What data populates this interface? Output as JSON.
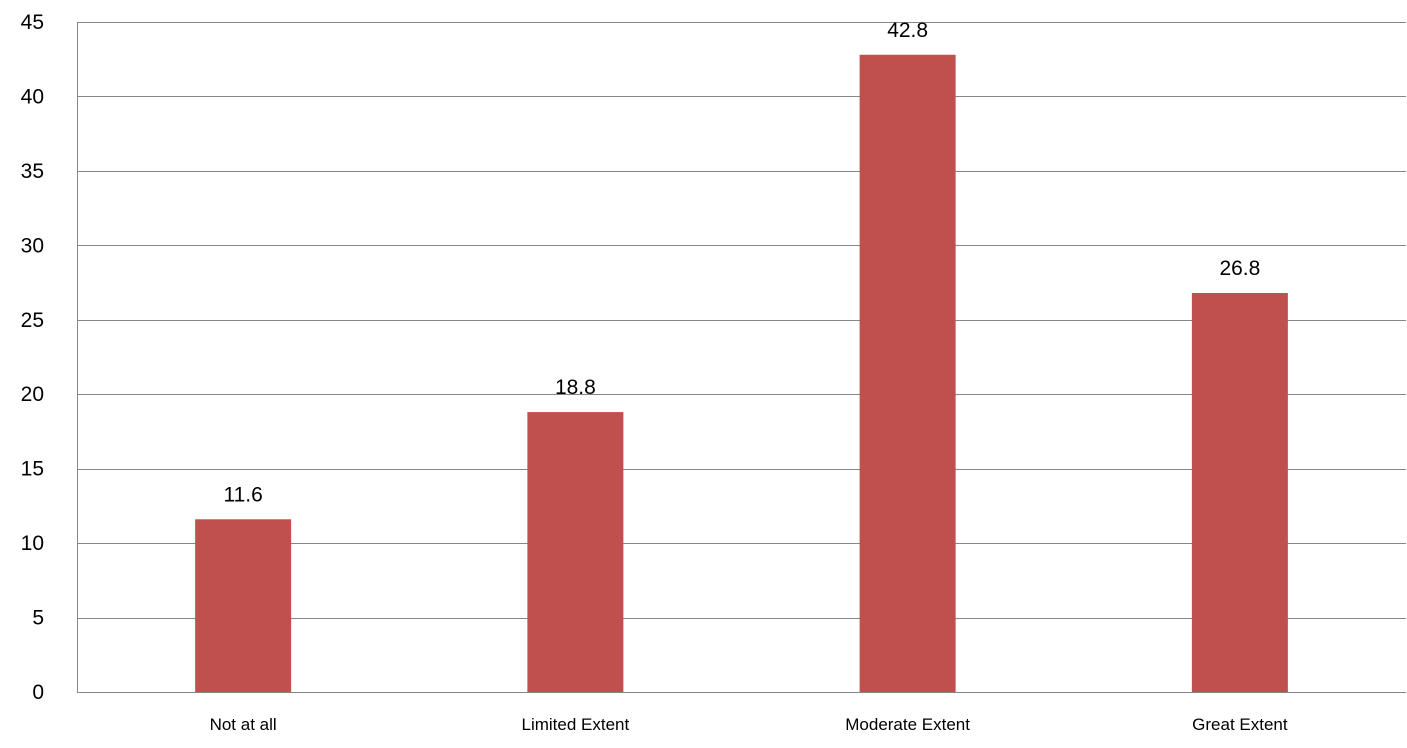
{
  "chart_data": {
    "type": "bar",
    "categories": [
      "Not at all",
      "Limited Extent",
      "Moderate Extent",
      "Great Extent"
    ],
    "values": [
      11.6,
      18.8,
      42.8,
      26.8
    ],
    "value_labels": [
      "11.6",
      "18.8",
      "42.8",
      "26.8"
    ],
    "y_ticks": [
      "0",
      "5",
      "10",
      "15",
      "20",
      "25",
      "30",
      "35",
      "40",
      "45"
    ],
    "ylim": [
      0,
      45
    ],
    "y_step": 5,
    "grid": true,
    "legend": "none",
    "title": "",
    "xlabel": "",
    "ylabel": "",
    "colors": {
      "bar": "#c0504d",
      "grid": "#868686",
      "axis": "#868686",
      "text": "#000000"
    }
  }
}
